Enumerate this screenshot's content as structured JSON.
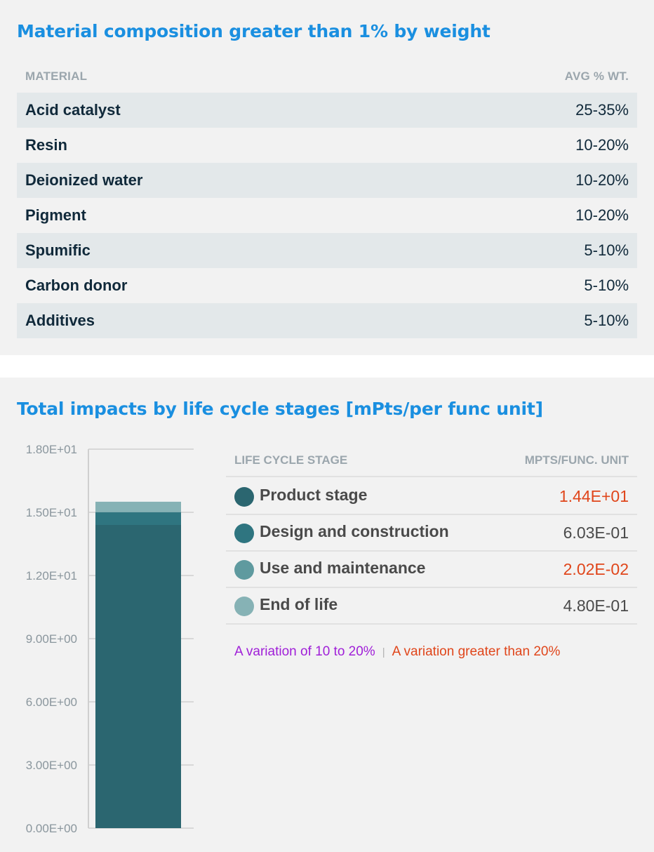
{
  "material_section": {
    "title": "Material composition greater than 1% by weight",
    "col_material": "MATERIAL",
    "col_weight": "AVG % WT.",
    "rows": [
      {
        "name": "Acid catalyst",
        "value": "25-35%"
      },
      {
        "name": "Resin",
        "value": "10-20%"
      },
      {
        "name": "Deionized water",
        "value": "10-20%"
      },
      {
        "name": "Pigment",
        "value": "10-20%"
      },
      {
        "name": "Spumific",
        "value": "5-10%"
      },
      {
        "name": "Carbon donor",
        "value": "5-10%"
      },
      {
        "name": "Additives",
        "value": "5-10%"
      }
    ]
  },
  "impacts_section": {
    "title": "Total impacts by life cycle stages [mPts/per func unit]",
    "col_stage": "LIFE CYCLE STAGE",
    "col_value": "MPTS/FUNC. UNIT",
    "stages": [
      {
        "name": "Product stage",
        "value": "1.44E+01",
        "color": "#2b6670",
        "flag": "red"
      },
      {
        "name": "Design and construction",
        "value": "6.03E-01",
        "color": "#2f7580",
        "flag": "none"
      },
      {
        "name": "Use and maintenance",
        "value": "2.02E-02",
        "color": "#5f9a9f",
        "flag": "red"
      },
      {
        "name": "End of life",
        "value": "4.80E-01",
        "color": "#86b2b5",
        "flag": "none"
      }
    ],
    "note_purple": "A variation of 10 to 20%",
    "note_separator": "|",
    "note_red": "A variation greater than 20%",
    "colors": {
      "accent_title": "#1a8fe0",
      "flag_red": "#e0461b",
      "flag_purple": "#a020d8"
    }
  },
  "chart_data": {
    "type": "bar",
    "stacked": true,
    "categories": [
      ""
    ],
    "series": [
      {
        "name": "Product stage",
        "values": [
          14.4
        ],
        "color": "#2b6670"
      },
      {
        "name": "Design and construction",
        "values": [
          0.603
        ],
        "color": "#2f7580"
      },
      {
        "name": "Use and maintenance",
        "values": [
          0.0202
        ],
        "color": "#5f9a9f"
      },
      {
        "name": "End of life",
        "values": [
          0.48
        ],
        "color": "#86b2b5"
      }
    ],
    "ylim": [
      0,
      18
    ],
    "yticks": [
      0,
      3,
      6,
      9,
      12,
      15,
      18
    ],
    "ytick_labels": [
      "0.00E+00",
      "3.00E+00",
      "6.00E+00",
      "9.00E+00",
      "1.20E+01",
      "1.50E+01",
      "1.80E+01"
    ],
    "xlabel": "",
    "ylabel": "",
    "grid": false,
    "legend": "right table"
  }
}
